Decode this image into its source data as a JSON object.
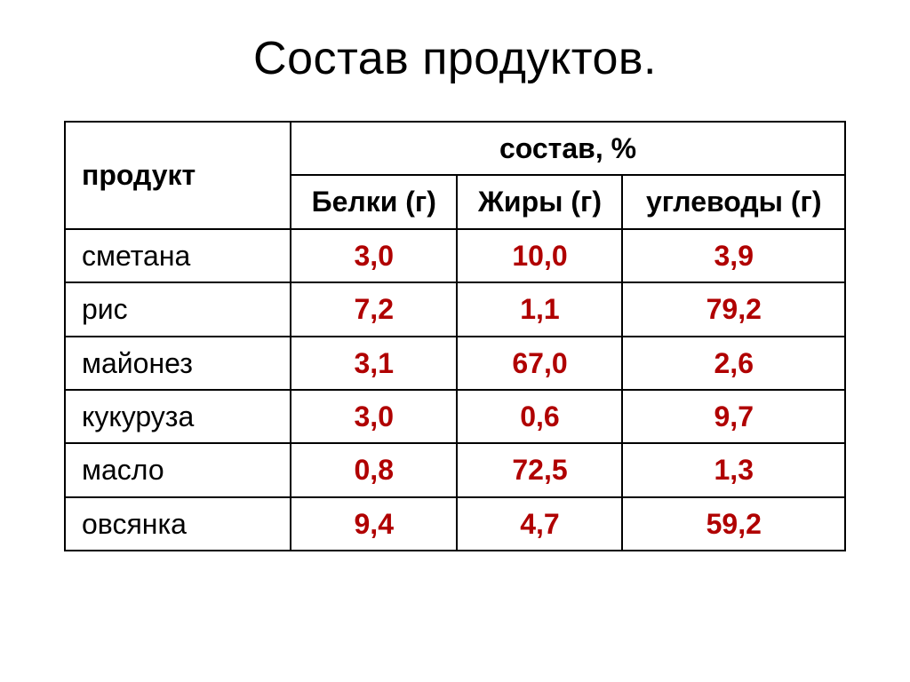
{
  "title": "Состав продуктов.",
  "table": {
    "type": "table",
    "header": {
      "product": "продукт",
      "composition": "состав, %",
      "sub": {
        "proteins": "Белки (г)",
        "fats": "Жиры (г)",
        "carbs": "углеводы (г)"
      }
    },
    "row_label_color": "#000000",
    "value_color": "#b00000",
    "border_color": "#000000",
    "columns": [
      "product",
      "proteins",
      "fats",
      "carbs"
    ],
    "rows": [
      {
        "product": "сметана",
        "proteins": "3,0",
        "fats": "10,0",
        "carbs": "3,9"
      },
      {
        "product": "рис",
        "proteins": "7,2",
        "fats": "1,1",
        "carbs": "79,2"
      },
      {
        "product": "майонез",
        "proteins": "3,1",
        "fats": "67,0",
        "carbs": "2,6"
      },
      {
        "product": "кукуруза",
        "proteins": "3,0",
        "fats": "0,6",
        "carbs": "9,7"
      },
      {
        "product": "масло",
        "proteins": "0,8",
        "fats": "72,5",
        "carbs": "1,3"
      },
      {
        "product": "овсянка",
        "proteins": "9,4",
        "fats": "4,7",
        "carbs": "59,2"
      }
    ],
    "header_fontsize": 32,
    "cell_fontsize": 32,
    "title_fontsize": 52
  }
}
